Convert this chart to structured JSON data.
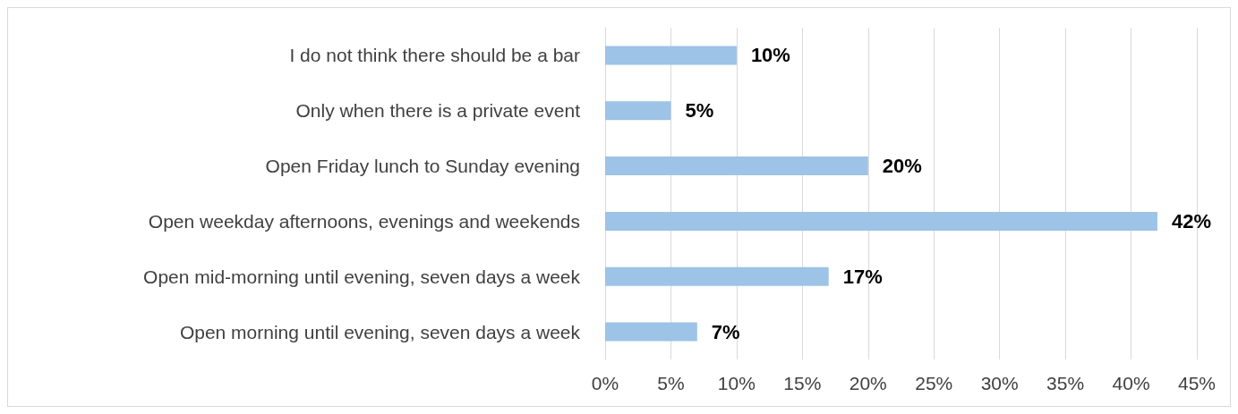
{
  "chart_data": {
    "type": "bar",
    "orientation": "horizontal",
    "categories": [
      "I do not think there should be a bar",
      "Only when there is a private event",
      "Open Friday lunch to Sunday evening",
      "Open weekday afternoons, evenings and weekends",
      "Open mid-morning until evening, seven days a week",
      "Open morning until evening, seven days a week"
    ],
    "values": [
      10,
      5,
      20,
      42,
      17,
      7
    ],
    "value_labels": [
      "10%",
      "5%",
      "20%",
      "42%",
      "17%",
      "7%"
    ],
    "color": "#9dc3e6",
    "xlim": [
      0,
      45
    ],
    "xticks": [
      {
        "value": 0,
        "label": "0%"
      },
      {
        "value": 5,
        "label": "5%"
      },
      {
        "value": 10,
        "label": "10%"
      },
      {
        "value": 15,
        "label": "15%"
      },
      {
        "value": 20,
        "label": "20%"
      },
      {
        "value": 25,
        "label": "25%"
      },
      {
        "value": 30,
        "label": "30%"
      },
      {
        "value": 35,
        "label": "35%"
      },
      {
        "value": 40,
        "label": "40%"
      },
      {
        "value": 45,
        "label": "45%"
      }
    ],
    "grid": "x"
  }
}
